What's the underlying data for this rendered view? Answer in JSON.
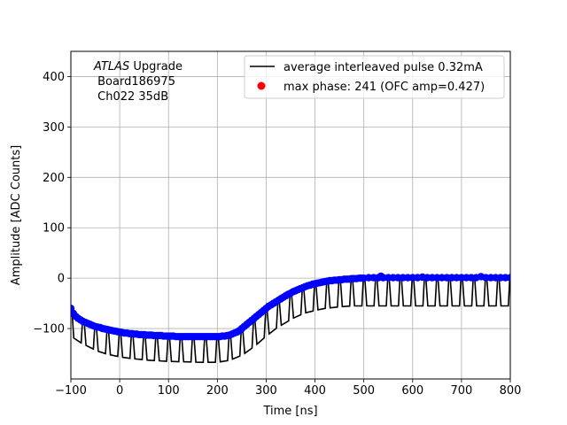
{
  "chart_data": {
    "type": "line",
    "xlabel": "Time [ns]",
    "ylabel": "Amplitude [ADC Counts]",
    "xlim": [
      -100,
      800
    ],
    "ylim": [
      -200,
      450
    ],
    "xticks": [
      -100,
      0,
      100,
      200,
      300,
      400,
      500,
      600,
      700,
      800
    ],
    "yticks": [
      -100,
      0,
      100,
      200,
      300,
      400
    ],
    "grid": true,
    "legend_position": "top-right",
    "annotation": {
      "line1_italic": "ATLAS",
      "line1_rest": " Upgrade",
      "line2": " Board186975",
      "line3": " Ch022 35dB"
    },
    "series": [
      {
        "name": "average interleaved pulse 0.32mA",
        "kind": "line",
        "color": "#000000",
        "upper_envelope": [
          [
            -100,
            -60
          ],
          [
            -80,
            -80
          ],
          [
            -60,
            -90
          ],
          [
            -40,
            -97
          ],
          [
            -20,
            -103
          ],
          [
            0,
            -107
          ],
          [
            20,
            -110
          ],
          [
            40,
            -112
          ],
          [
            60,
            -113
          ],
          [
            80,
            -114
          ],
          [
            100,
            -115
          ],
          [
            120,
            -116
          ],
          [
            140,
            -116
          ],
          [
            160,
            -116
          ],
          [
            180,
            -116
          ],
          [
            200,
            -116
          ],
          [
            220,
            -114
          ],
          [
            240,
            -108
          ],
          [
            260,
            -97
          ],
          [
            280,
            -82
          ],
          [
            300,
            -65
          ],
          [
            320,
            -50
          ],
          [
            340,
            -38
          ],
          [
            360,
            -27
          ],
          [
            380,
            -19
          ],
          [
            400,
            -13
          ],
          [
            420,
            -8
          ],
          [
            440,
            -4
          ],
          [
            460,
            -2
          ],
          [
            480,
            -1
          ],
          [
            500,
            0
          ],
          [
            600,
            0
          ],
          [
            700,
            0
          ],
          [
            800,
            0
          ]
        ],
        "lower_envelope": [
          [
            -100,
            -115
          ],
          [
            -80,
            -128
          ],
          [
            -60,
            -138
          ],
          [
            -40,
            -147
          ],
          [
            -20,
            -152
          ],
          [
            0,
            -156
          ],
          [
            20,
            -159
          ],
          [
            40,
            -161
          ],
          [
            60,
            -163
          ],
          [
            80,
            -164
          ],
          [
            100,
            -165
          ],
          [
            120,
            -166
          ],
          [
            140,
            -166
          ],
          [
            160,
            -167
          ],
          [
            180,
            -167
          ],
          [
            200,
            -167
          ],
          [
            220,
            -164
          ],
          [
            240,
            -158
          ],
          [
            260,
            -147
          ],
          [
            280,
            -132
          ],
          [
            300,
            -115
          ],
          [
            320,
            -100
          ],
          [
            340,
            -88
          ],
          [
            360,
            -77
          ],
          [
            380,
            -69
          ],
          [
            400,
            -64
          ],
          [
            420,
            -60
          ],
          [
            440,
            -58
          ],
          [
            460,
            -56
          ],
          [
            480,
            -55
          ],
          [
            500,
            -55
          ],
          [
            600,
            -55
          ],
          [
            700,
            -55
          ],
          [
            800,
            -55
          ]
        ],
        "step_period": 25
      },
      {
        "name": "max phase: 241 (OFC amp=0.427)",
        "kind": "scatter",
        "color": "#0000ff",
        "points": [
          [
            -100,
            -60
          ],
          [
            -95,
            -70
          ],
          [
            -90,
            -76
          ],
          [
            -85,
            -80
          ],
          [
            -80,
            -83
          ],
          [
            -75,
            -86
          ],
          [
            -70,
            -88
          ],
          [
            -65,
            -90
          ],
          [
            -60,
            -92
          ],
          [
            -55,
            -94
          ],
          [
            -50,
            -96
          ],
          [
            -45,
            -97
          ],
          [
            -40,
            -98
          ],
          [
            -35,
            -100
          ],
          [
            -30,
            -101
          ],
          [
            -25,
            -102
          ],
          [
            -20,
            -103
          ],
          [
            -15,
            -104
          ],
          [
            -10,
            -105
          ],
          [
            -5,
            -106
          ],
          [
            0,
            -107
          ],
          [
            5,
            -108
          ],
          [
            10,
            -109
          ],
          [
            15,
            -109
          ],
          [
            20,
            -110
          ],
          [
            25,
            -110
          ],
          [
            30,
            -111
          ],
          [
            35,
            -111
          ],
          [
            40,
            -112
          ],
          [
            45,
            -112
          ],
          [
            50,
            -112
          ],
          [
            55,
            -113
          ],
          [
            60,
            -113
          ],
          [
            65,
            -113
          ],
          [
            70,
            -114
          ],
          [
            75,
            -114
          ],
          [
            80,
            -114
          ],
          [
            85,
            -114
          ],
          [
            90,
            -115
          ],
          [
            95,
            -115
          ],
          [
            100,
            -115
          ],
          [
            105,
            -115
          ],
          [
            110,
            -115
          ],
          [
            115,
            -116
          ],
          [
            120,
            -116
          ],
          [
            125,
            -116
          ],
          [
            130,
            -116
          ],
          [
            135,
            -116
          ],
          [
            140,
            -116
          ],
          [
            145,
            -116
          ],
          [
            150,
            -116
          ],
          [
            155,
            -116
          ],
          [
            160,
            -116
          ],
          [
            165,
            -116
          ],
          [
            170,
            -116
          ],
          [
            175,
            -116
          ],
          [
            180,
            -116
          ],
          [
            185,
            -116
          ],
          [
            190,
            -116
          ],
          [
            195,
            -116
          ],
          [
            200,
            -116
          ],
          [
            205,
            -116
          ],
          [
            210,
            -115
          ],
          [
            215,
            -115
          ],
          [
            220,
            -114
          ],
          [
            225,
            -113
          ],
          [
            230,
            -111
          ],
          [
            235,
            -109
          ],
          [
            240,
            -107
          ],
          [
            245,
            -104
          ],
          [
            250,
            -100
          ],
          [
            255,
            -96
          ],
          [
            260,
            -92
          ],
          [
            265,
            -88
          ],
          [
            270,
            -84
          ],
          [
            275,
            -80
          ],
          [
            280,
            -76
          ],
          [
            285,
            -72
          ],
          [
            290,
            -68
          ],
          [
            295,
            -64
          ],
          [
            300,
            -60
          ],
          [
            305,
            -56
          ],
          [
            310,
            -53
          ],
          [
            315,
            -50
          ],
          [
            320,
            -47
          ],
          [
            325,
            -44
          ],
          [
            330,
            -41
          ],
          [
            335,
            -38
          ],
          [
            340,
            -35
          ],
          [
            345,
            -32
          ],
          [
            350,
            -30
          ],
          [
            355,
            -27
          ],
          [
            360,
            -25
          ],
          [
            365,
            -23
          ],
          [
            370,
            -21
          ],
          [
            375,
            -19
          ],
          [
            380,
            -17
          ],
          [
            385,
            -15
          ],
          [
            390,
            -14
          ],
          [
            395,
            -12
          ],
          [
            400,
            -11
          ],
          [
            405,
            -10
          ],
          [
            410,
            -9
          ],
          [
            415,
            -8
          ],
          [
            420,
            -7
          ],
          [
            425,
            -6
          ],
          [
            430,
            -5
          ],
          [
            435,
            -5
          ],
          [
            440,
            -4
          ],
          [
            445,
            -4
          ],
          [
            450,
            -3
          ],
          [
            455,
            -3
          ],
          [
            460,
            -2
          ],
          [
            465,
            -2
          ],
          [
            470,
            -2
          ],
          [
            475,
            -1
          ],
          [
            480,
            -1
          ],
          [
            485,
            -1
          ],
          [
            490,
            0
          ],
          [
            495,
            0
          ],
          [
            500,
            0
          ],
          [
            510,
            1
          ],
          [
            520,
            1
          ],
          [
            530,
            1
          ],
          [
            535,
            4
          ],
          [
            540,
            1
          ],
          [
            550,
            1
          ],
          [
            560,
            1
          ],
          [
            570,
            1
          ],
          [
            580,
            1
          ],
          [
            590,
            1
          ],
          [
            600,
            1
          ],
          [
            610,
            1
          ],
          [
            620,
            2
          ],
          [
            630,
            1
          ],
          [
            640,
            1
          ],
          [
            650,
            1
          ],
          [
            660,
            1
          ],
          [
            670,
            1
          ],
          [
            680,
            1
          ],
          [
            690,
            1
          ],
          [
            700,
            1
          ],
          [
            710,
            1
          ],
          [
            720,
            1
          ],
          [
            730,
            1
          ],
          [
            740,
            3
          ],
          [
            750,
            1
          ],
          [
            760,
            1
          ],
          [
            770,
            1
          ],
          [
            780,
            1
          ],
          [
            790,
            1
          ],
          [
            800,
            1
          ]
        ]
      }
    ]
  }
}
